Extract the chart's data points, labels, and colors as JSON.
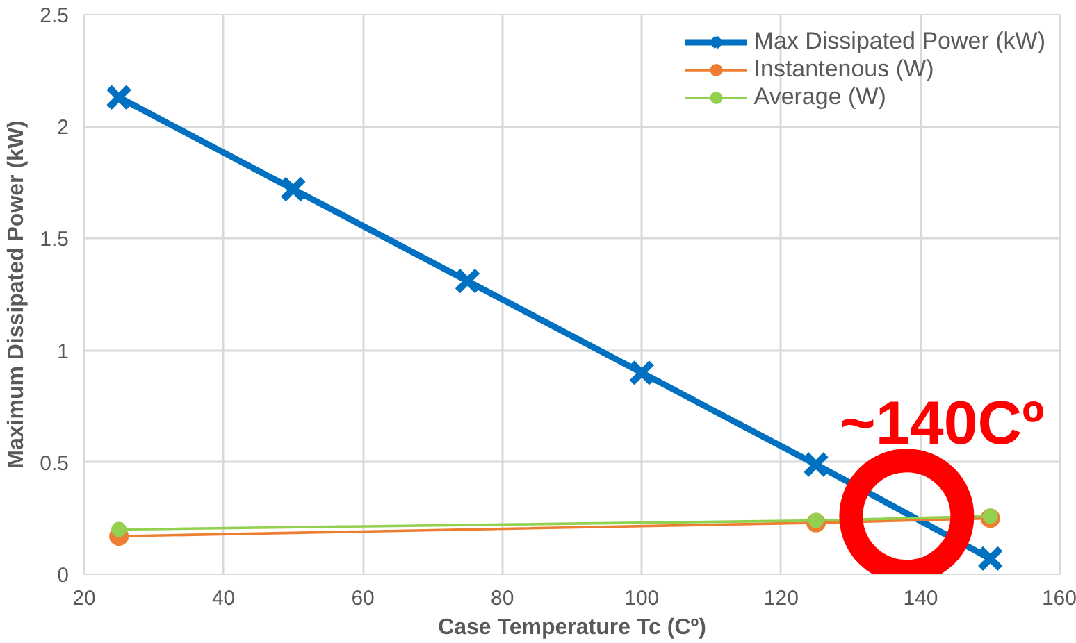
{
  "chart_data": {
    "type": "line",
    "xlabel": "Case Temperature Tc (Cº)",
    "ylabel": "Maximum Dissipated Power (kW)",
    "xlim": [
      20,
      160
    ],
    "xticks": [
      20,
      40,
      60,
      80,
      100,
      120,
      140,
      160
    ],
    "ylim": [
      0,
      2.5
    ],
    "yticks": [
      0,
      0.5,
      1,
      1.5,
      2,
      2.5
    ],
    "grid": true,
    "legend": "top right",
    "series": [
      {
        "name": "Max Dissipated Power (kW)",
        "color": "#0070c0",
        "marker": "cross",
        "x": [
          25,
          50,
          75,
          100,
          125,
          150
        ],
        "values": [
          2.13,
          1.72,
          1.31,
          0.9,
          0.49,
          0.07
        ]
      },
      {
        "name": "Instantenous (W)",
        "color": "#ed7d31",
        "marker": "circle",
        "x": [
          25,
          125,
          150
        ],
        "values": [
          0.17,
          0.23,
          0.25
        ]
      },
      {
        "name": "Average (W)",
        "color": "#92d050",
        "marker": "circle",
        "x": [
          25,
          125,
          150
        ],
        "values": [
          0.2,
          0.24,
          0.26
        ]
      }
    ],
    "annotations": [
      {
        "text": "~140Cº",
        "x": 138,
        "y": 0.26
      }
    ]
  }
}
